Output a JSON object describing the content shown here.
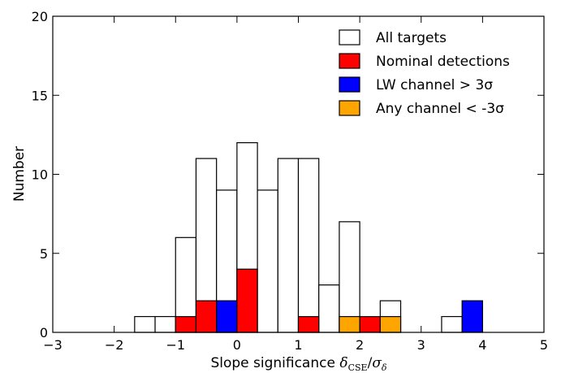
{
  "chart_data": {
    "type": "bar",
    "subtype": "histogram",
    "xlabel": "Slope significance δ_CSE/σ_δ",
    "xlabel_parts": {
      "main": "Slope significance ",
      "symbol": "δ",
      "sub1": "CSE",
      "slash": "/",
      "symbol2": "σ",
      "sub2": "δ"
    },
    "ylabel": "Number",
    "xlim": [
      -3,
      5
    ],
    "ylim": [
      0,
      20
    ],
    "xticks": [
      -3,
      -2,
      -1,
      0,
      1,
      2,
      3,
      4,
      5
    ],
    "yticks": [
      0,
      5,
      10,
      15,
      20
    ],
    "xtick_labels": [
      "−3",
      "−2",
      "−1",
      "0",
      "1",
      "2",
      "3",
      "4",
      "5"
    ],
    "ytick_labels": [
      "0",
      "5",
      "10",
      "15",
      "20"
    ],
    "bin_width": 0.3333,
    "bin_starts": [
      -1.6667,
      -1.3333,
      -1.0,
      -0.6667,
      -0.3333,
      0.0,
      0.3333,
      0.6667,
      1.0,
      1.3333,
      1.6667,
      2.0,
      2.3333,
      3.3333,
      3.6667
    ],
    "grid": false,
    "legend_position": "top-right",
    "series": [
      {
        "name": "All targets",
        "color": "#ffffff",
        "values": [
          1,
          1,
          6,
          11,
          9,
          12,
          9,
          11,
          11,
          3,
          7,
          0,
          2,
          1,
          0
        ]
      },
      {
        "name": "Nominal detections",
        "color": "#ff0000",
        "values": [
          0,
          0,
          1,
          2,
          1,
          4,
          0,
          0,
          1,
          0,
          0,
          1,
          0,
          0,
          0
        ]
      },
      {
        "name": "LW channel > 3σ",
        "color": "#0000ff",
        "values": [
          0,
          0,
          0,
          0,
          2,
          0,
          0,
          0,
          0,
          0,
          0,
          0,
          0,
          0,
          2
        ]
      },
      {
        "name": "Any channel < -3σ",
        "color": "#ffa500",
        "values": [
          0,
          0,
          0,
          0,
          0,
          0,
          0,
          0,
          0,
          0,
          1,
          0,
          1,
          0,
          0
        ]
      }
    ]
  }
}
